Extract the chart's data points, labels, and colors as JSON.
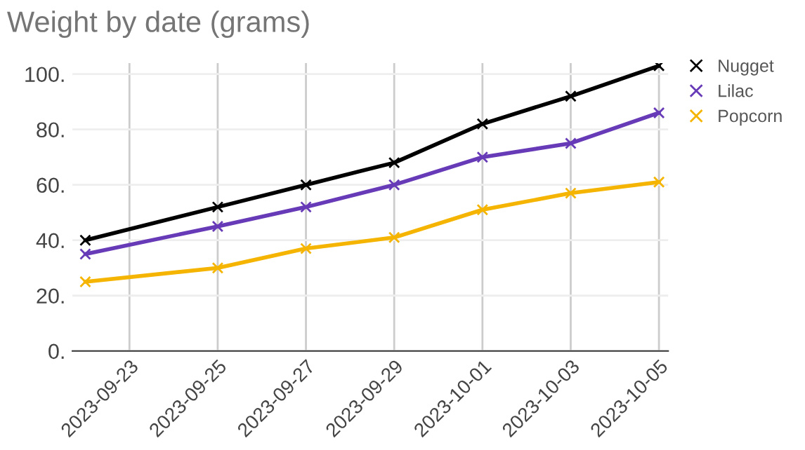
{
  "chart_data": {
    "type": "line",
    "title": "Weight by date (grams)",
    "x": [
      "2023-09-22",
      "2023-09-25",
      "2023-09-27",
      "2023-09-29",
      "2023-10-01",
      "2023-10-03",
      "2023-10-05"
    ],
    "series": [
      {
        "name": "Nugget",
        "color": "#000000",
        "values": [
          40,
          52,
          60,
          68,
          82,
          92,
          103
        ]
      },
      {
        "name": "Lilac",
        "color": "#673ab7",
        "values": [
          35,
          45,
          52,
          60,
          70,
          75,
          86
        ]
      },
      {
        "name": "Popcorn",
        "color": "#f4b400",
        "values": [
          25,
          30,
          37,
          41,
          51,
          57,
          61
        ]
      }
    ],
    "xlim": [
      "2023-09-21T17:00",
      "2023-10-05T05:00"
    ],
    "xticks": [
      "2023-09-23",
      "2023-09-25",
      "2023-09-27",
      "2023-09-29",
      "2023-10-01",
      "2023-10-03",
      "2023-10-05"
    ],
    "ylim": [
      0,
      104
    ],
    "yticks": [
      {
        "value": 0,
        "label": "0."
      },
      {
        "value": 20,
        "label": "20."
      },
      {
        "value": 40,
        "label": "40."
      },
      {
        "value": 60,
        "label": "60."
      },
      {
        "value": 80,
        "label": "80."
      },
      {
        "value": 100,
        "label": "100."
      }
    ],
    "grid": true,
    "legend": "top right",
    "marker": "cross",
    "line_style": "solid"
  }
}
